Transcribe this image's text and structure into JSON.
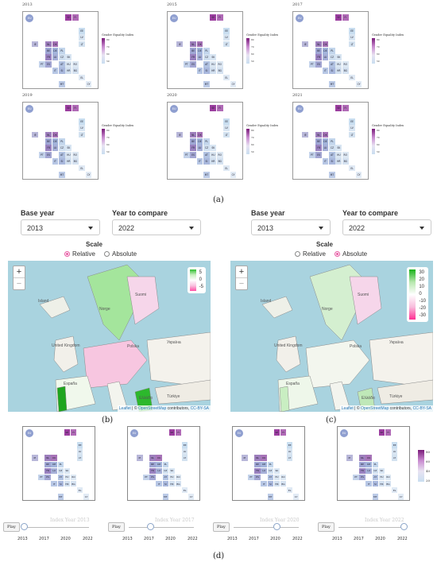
{
  "panel_a_years": [
    "2013",
    "2015",
    "2017",
    "2019",
    "2020",
    "2021"
  ],
  "countries": [
    "EU",
    "SE",
    "FI",
    "EE",
    "LV",
    "LT",
    "IE",
    "NL",
    "DK",
    "PL",
    "BE",
    "DE",
    "FR",
    "LU",
    "CZ",
    "SK",
    "PT",
    "ES",
    "AT",
    "HU",
    "RO",
    "IT",
    "SI",
    "HR",
    "BG",
    "EL",
    "MT",
    "CY"
  ],
  "legend_title": "Gender Equality Index",
  "legend_ticks": [
    "80",
    "70",
    "60",
    "50"
  ],
  "captions": {
    "a": "(a)",
    "b": "(b)",
    "c": "(c)",
    "d": "(d)"
  },
  "controls_b": {
    "base_year_label": "Base year",
    "base_year_value": "2013",
    "compare_label": "Year to compare",
    "compare_value": "2022",
    "scale_label": "Scale",
    "opt_relative": "Relative",
    "opt_absolute": "Absolute",
    "selected": "Relative"
  },
  "controls_c": {
    "base_year_label": "Base year",
    "base_year_value": "2013",
    "compare_label": "Year to compare",
    "compare_value": "2022",
    "scale_label": "Scale",
    "opt_relative": "Relative",
    "opt_absolute": "Absolute",
    "selected": "Absolute"
  },
  "map_b_legend": [
    "5",
    "0",
    "-5"
  ],
  "map_c_legend": [
    "30",
    "20",
    "10",
    "0",
    "-10",
    "-20",
    "-30"
  ],
  "map_attribution": {
    "leaflet": "Leaflet",
    "sep": " | © ",
    "osm": "OpenStreetMap",
    "contrib": " contributors, ",
    "license": "CC-BY-SA"
  },
  "map_labels": [
    "Island",
    "Norge",
    "Suomi",
    "United Kingdom",
    "España",
    "Polska",
    "Україна",
    "Türkiye",
    "Ελλάδα"
  ],
  "zoom": {
    "plus": "+",
    "minus": "−"
  },
  "panel_d": [
    {
      "index_label": "Index Year 2013",
      "play": "Play"
    },
    {
      "index_label": "Index Year 2017",
      "play": "Play"
    },
    {
      "index_label": "Index Year 2020",
      "play": "Play"
    },
    {
      "index_label": "Index Year 2022",
      "play": "Play"
    }
  ],
  "slider_ticks": [
    "2013",
    "2017",
    "2020",
    "2022"
  ],
  "d_legend_ticks": [
    "80",
    "60",
    "40",
    "20"
  ],
  "colors": {
    "purple_dark": "#7a1b7a",
    "purple_mid": "#b46bbd",
    "light_blue": "#c9def0",
    "map_green": "#2fbf2f",
    "map_pink": "#ff4fa6",
    "sea": "#a9d3df"
  }
}
